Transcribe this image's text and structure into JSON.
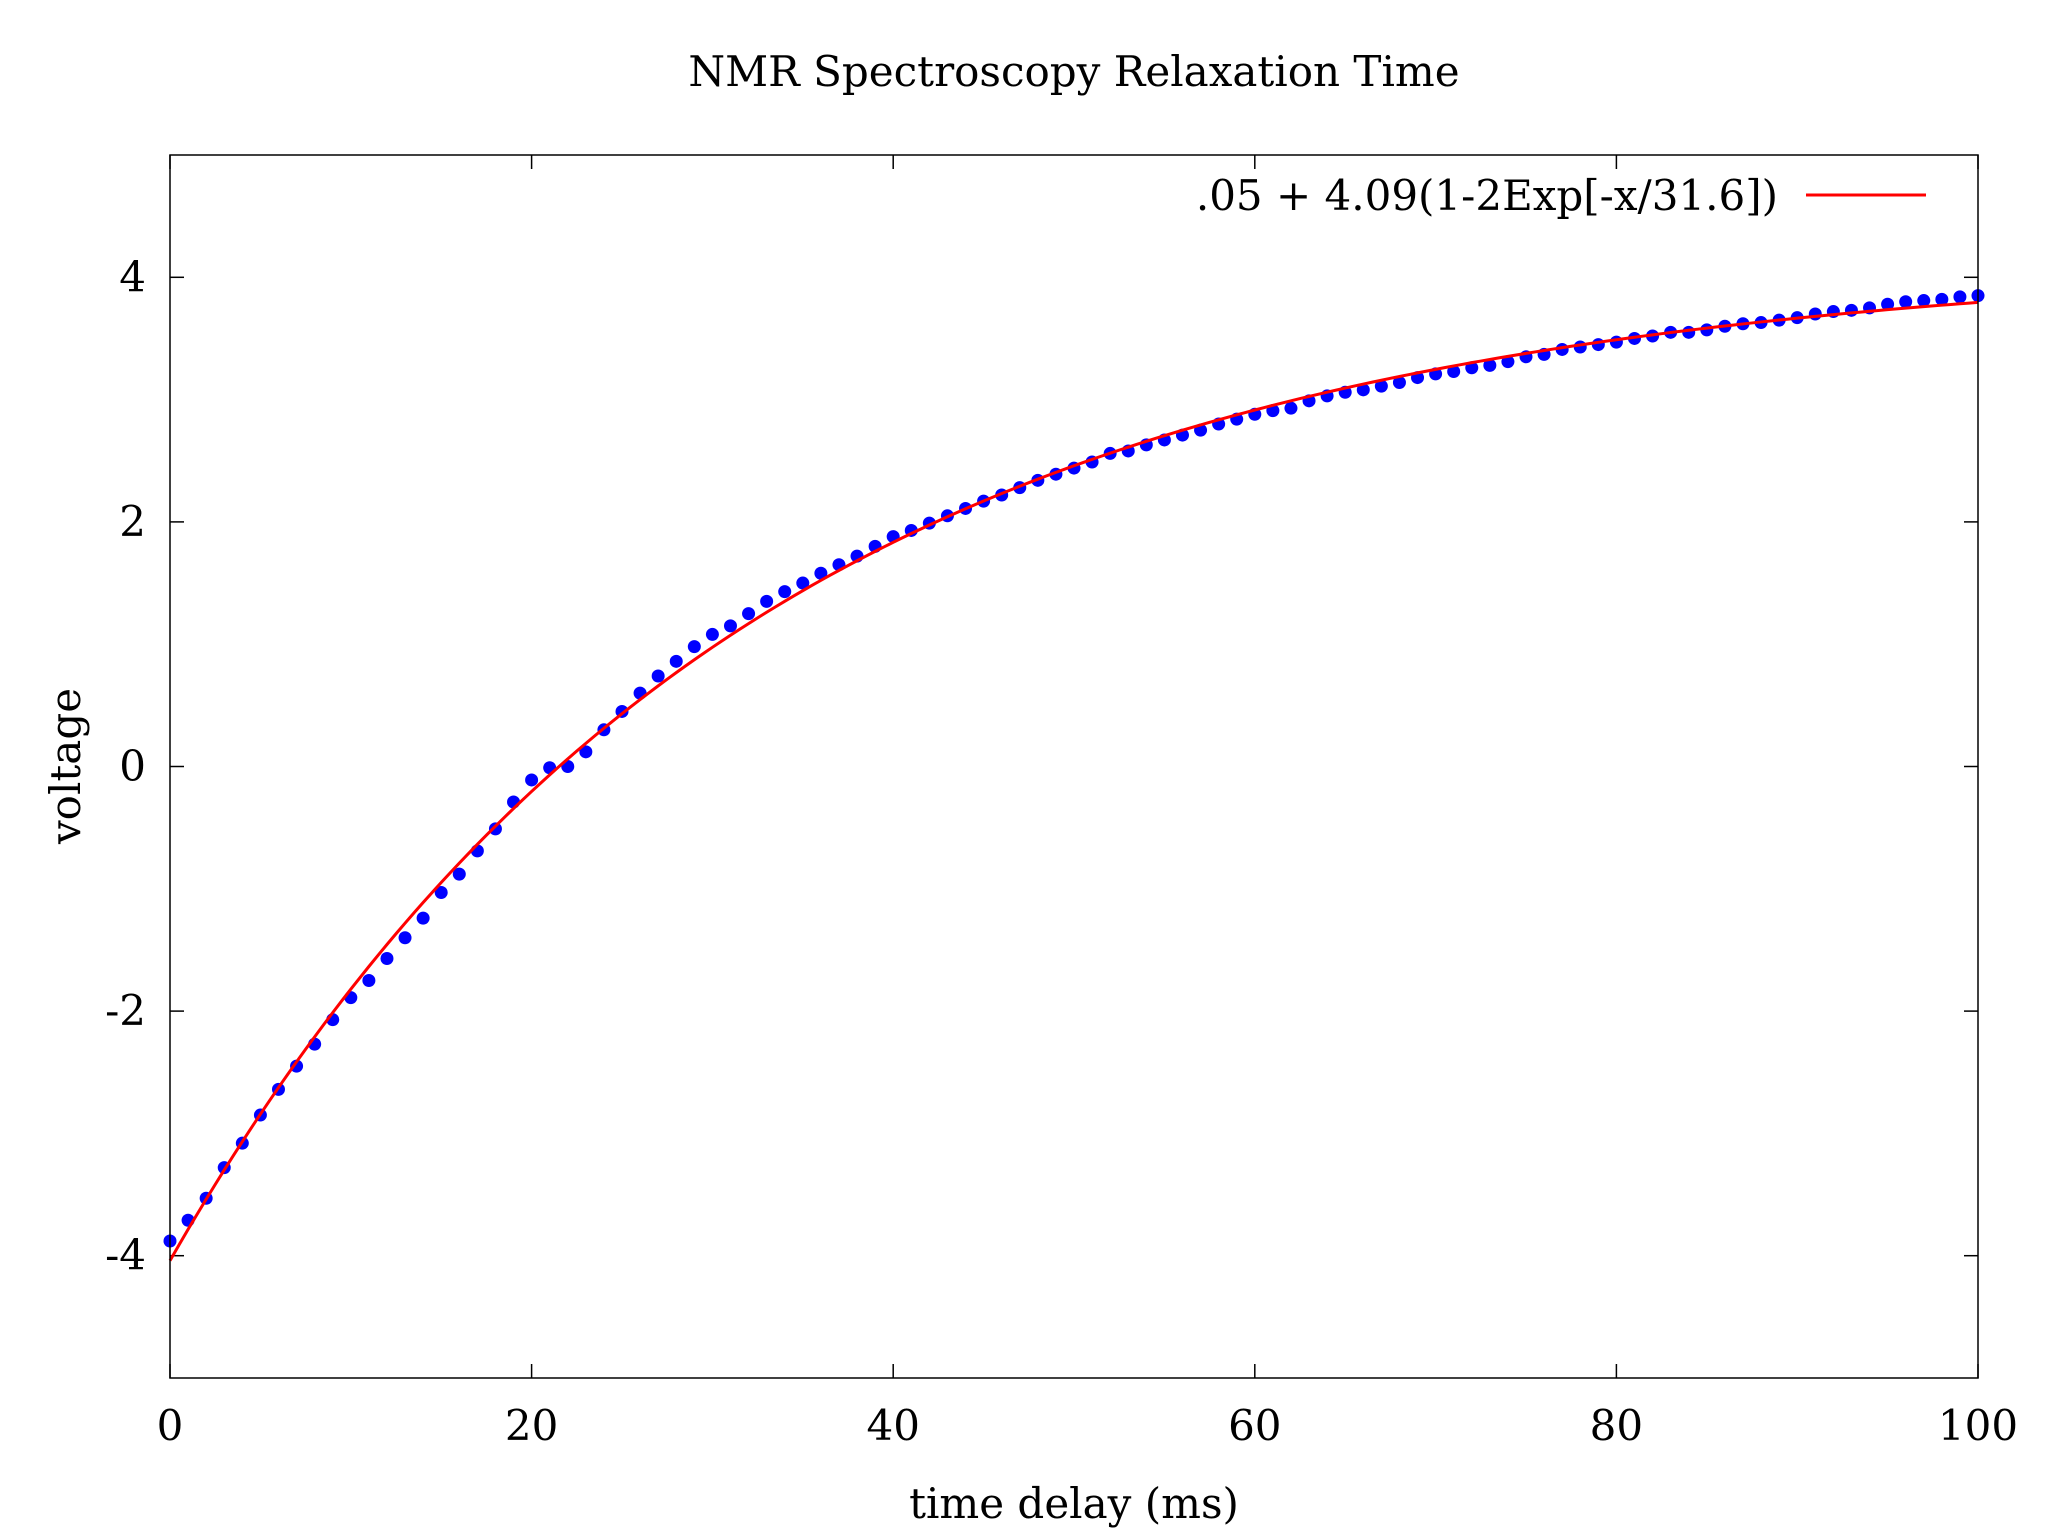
{
  "chart_data": {
    "type": "scatter",
    "title": "NMR Spectroscopy Relaxation Time",
    "xlabel": "time delay (ms)",
    "ylabel": "voltage",
    "xlim": [
      0,
      100
    ],
    "ylim": [
      -5,
      5
    ],
    "xticks": [
      0,
      20,
      40,
      60,
      80,
      100
    ],
    "yticks": [
      -4,
      -2,
      0,
      2,
      4
    ],
    "grid": false,
    "legend_position": "top-right",
    "series": [
      {
        "kind": "points",
        "color": "#0000ff",
        "x": [
          0,
          1,
          2,
          3,
          4,
          5,
          6,
          7,
          8,
          9,
          10,
          11,
          12,
          13,
          14,
          15,
          16,
          17,
          18,
          19,
          20,
          21,
          22,
          23,
          24,
          25,
          26,
          27,
          28,
          29,
          30,
          31,
          32,
          33,
          34,
          35,
          36,
          37,
          38,
          39,
          40,
          41,
          42,
          43,
          44,
          45,
          46,
          47,
          48,
          49,
          50,
          51,
          52,
          53,
          54,
          55,
          56,
          57,
          58,
          59,
          60,
          61,
          62,
          63,
          64,
          65,
          66,
          67,
          68,
          69,
          70,
          71,
          72,
          73,
          74,
          75,
          76,
          77,
          78,
          79,
          80,
          81,
          82,
          83,
          84,
          85,
          86,
          87,
          88,
          89,
          90,
          91,
          92,
          93,
          94,
          95,
          96,
          97,
          98,
          99,
          100
        ],
        "y": [
          -3.88,
          -3.71,
          -3.53,
          -3.28,
          -3.08,
          -2.85,
          -2.64,
          -2.45,
          -2.27,
          -2.07,
          -1.89,
          -1.75,
          -1.57,
          -1.4,
          -1.24,
          -1.03,
          -0.88,
          -0.69,
          -0.51,
          -0.29,
          -0.11,
          -0.01,
          0.0,
          0.12,
          0.3,
          0.45,
          0.6,
          0.74,
          0.86,
          0.98,
          1.08,
          1.15,
          1.25,
          1.35,
          1.43,
          1.5,
          1.58,
          1.65,
          1.72,
          1.8,
          1.88,
          1.93,
          1.99,
          2.05,
          2.11,
          2.17,
          2.22,
          2.28,
          2.34,
          2.39,
          2.44,
          2.49,
          2.56,
          2.58,
          2.63,
          2.67,
          2.71,
          2.75,
          2.8,
          2.84,
          2.88,
          2.91,
          2.93,
          2.99,
          3.03,
          3.06,
          3.08,
          3.11,
          3.14,
          3.18,
          3.21,
          3.23,
          3.26,
          3.28,
          3.31,
          3.35,
          3.37,
          3.41,
          3.43,
          3.45,
          3.47,
          3.5,
          3.52,
          3.55,
          3.55,
          3.57,
          3.6,
          3.62,
          3.63,
          3.65,
          3.67,
          3.7,
          3.72,
          3.73,
          3.75,
          3.78,
          3.8,
          3.81,
          3.82,
          3.84,
          3.85
        ]
      },
      {
        "kind": "curve",
        "name": ".05 + 4.09(1-2Exp[-x/31.6])",
        "color": "#ff0000",
        "offset": 0.05,
        "amplitude": 4.09,
        "tau": 31.6
      }
    ]
  }
}
